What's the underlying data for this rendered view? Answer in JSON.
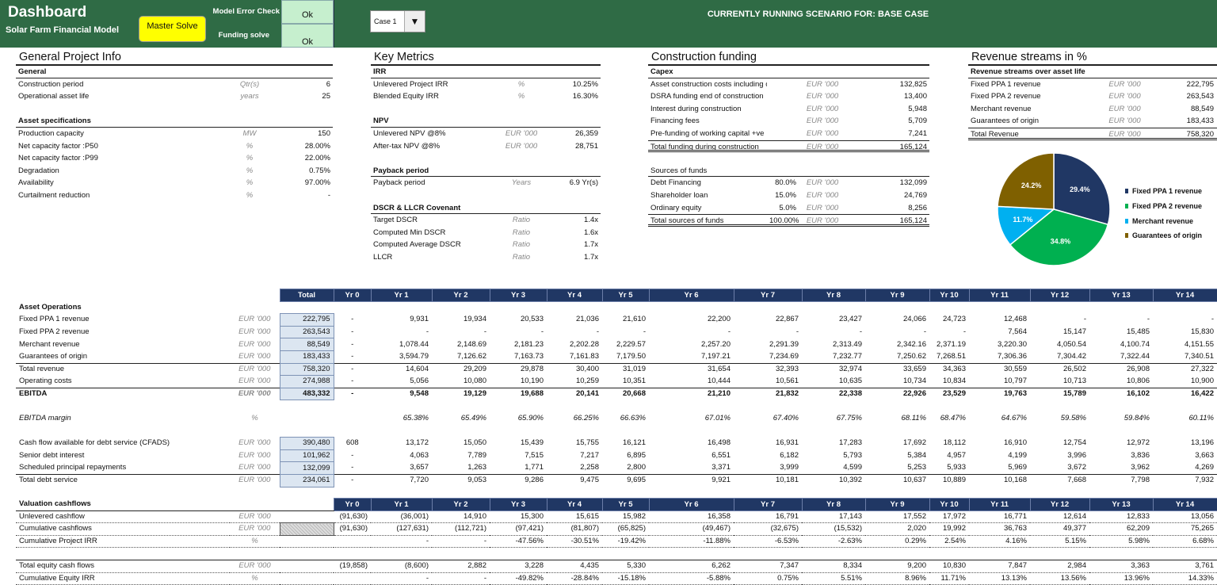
{
  "header": {
    "title": "Dashboard",
    "subtitle": "Solar Farm Financial  Model",
    "master_solve": "Master Solve",
    "model_error_label": "Model Error Check",
    "model_error_value": "Ok",
    "funding_label": "Funding solve",
    "funding_value": "Ok",
    "case_select": "Case 1",
    "scenario": "CURRENTLY RUNNING SCENARIO FOR: BASE CASE",
    "color": "#2f6b45"
  },
  "sections": [
    {
      "id": "s-general",
      "title": "General Project Info",
      "rows": [
        {
          "t": "head",
          "label": "General"
        },
        {
          "label": "Construction period",
          "unit": "Qtr(s)",
          "value": "6"
        },
        {
          "label": "Operational asset life",
          "unit": "years",
          "value": "25"
        },
        {
          "t": "blank"
        },
        {
          "t": "head",
          "label": "Asset specifications"
        },
        {
          "label": "Production capacity",
          "unit": "MW",
          "value": "150"
        },
        {
          "label": "Net capacity factor :P50",
          "unit": "%",
          "value": "28.00%"
        },
        {
          "label": "Net capacity factor :P99",
          "unit": "%",
          "value": "22.00%"
        },
        {
          "label": "Degradation",
          "unit": "%",
          "value": "0.75%"
        },
        {
          "label": "Availability",
          "unit": "%",
          "value": "97.00%"
        },
        {
          "label": "Curtailment reduction",
          "unit": "%",
          "value": "-"
        }
      ]
    },
    {
      "id": "s-metrics",
      "title": "Key Metrics",
      "rows": [
        {
          "t": "head",
          "label": "IRR"
        },
        {
          "label": "Unlevered Project IRR",
          "unit": "%",
          "value": "10.25%"
        },
        {
          "label": "Blended Equity IRR",
          "unit": "%",
          "value": "16.30%"
        },
        {
          "t": "blank"
        },
        {
          "t": "head",
          "label": "NPV"
        },
        {
          "label": "Unlevered NPV @8%",
          "unit": "EUR '000",
          "value": "26,359"
        },
        {
          "label": "After-tax NPV @8%",
          "unit": "EUR '000",
          "value": "28,751"
        },
        {
          "t": "blank"
        },
        {
          "t": "head",
          "label": "Payback period"
        },
        {
          "label": "Payback period",
          "unit": "Years",
          "value": "6.9 Yr(s)"
        },
        {
          "t": "blank"
        },
        {
          "t": "head",
          "label": "DSCR & LLCR Covenant"
        },
        {
          "label": "Target DSCR",
          "unit": "Ratio",
          "value": "1.4x"
        },
        {
          "label": "Computed Min DSCR",
          "unit": "Ratio",
          "value": "1.6x"
        },
        {
          "label": "Computed Average DSCR",
          "unit": "Ratio",
          "value": "1.7x"
        },
        {
          "label": "LLCR",
          "unit": "Ratio",
          "value": "1.7x"
        }
      ]
    },
    {
      "id": "s-funding",
      "title": "Construction funding",
      "rows": [
        {
          "t": "head",
          "label": "Capex"
        },
        {
          "label": "Asset construction costs including contingency",
          "unit": "EUR '000",
          "value": "132,825"
        },
        {
          "label": "DSRA funding end of construction",
          "unit": "EUR '000",
          "value": "13,400"
        },
        {
          "label": "Interest during construction",
          "unit": "EUR '000",
          "value": "5,948"
        },
        {
          "label": "Financing fees",
          "unit": "EUR '000",
          "value": "5,709"
        },
        {
          "label": "Pre-funding of working capital +ve",
          "unit": "EUR '000",
          "value": "7,241"
        },
        {
          "t": "total",
          "label": "Total funding during construction",
          "unit": "EUR '000",
          "value": "165,124"
        },
        {
          "t": "blank"
        },
        {
          "t": "headplain",
          "label": "Sources of funds"
        },
        {
          "label": "Debt Financing",
          "pct": "80.0%",
          "unit": "EUR '000",
          "value": "132,099"
        },
        {
          "label": "Shareholder loan",
          "pct": "15.0%",
          "unit": "EUR '000",
          "value": "24,769"
        },
        {
          "label": "Ordinary equity",
          "pct": "5.0%",
          "unit": "EUR '000",
          "value": "8,256"
        },
        {
          "t": "total",
          "label": "Total sources of funds",
          "pct": "100.00%",
          "unit": "EUR '000",
          "value": "165,124"
        }
      ]
    },
    {
      "id": "s-revenue",
      "title": "Revenue streams in %",
      "rows": [
        {
          "t": "head",
          "label": "Revenue streams over asset life"
        },
        {
          "label": "Fixed  PPA 1 revenue",
          "unit": "EUR '000",
          "value": "222,795"
        },
        {
          "label": "Fixed  PPA 2 revenue",
          "unit": "EUR '000",
          "value": "263,543"
        },
        {
          "label": "Merchant revenue",
          "unit": "EUR '000",
          "value": "88,549"
        },
        {
          "label": "Guarantees of origin",
          "unit": "EUR '000",
          "value": "183,433"
        },
        {
          "t": "total",
          "label": "Total Revenue",
          "unit": "EUR '000",
          "value": "758,320"
        }
      ]
    }
  ],
  "chart_data": {
    "type": "pie",
    "title": "",
    "categories": [
      "Fixed  PPA 1 revenue",
      "Fixed  PPA 2 revenue",
      "Merchant revenue",
      "Guarantees of origin"
    ],
    "values": [
      29.4,
      34.8,
      11.7,
      24.2
    ],
    "labels": [
      "29.4%",
      "34.8%",
      "11.7%",
      "24.2%"
    ],
    "colors": [
      "#203764",
      "#00b050",
      "#00b0f0",
      "#7f6000"
    ],
    "legend": "right"
  },
  "ops": {
    "total_label": "Total",
    "years": [
      "Yr 0",
      "Yr 1",
      "Yr 2",
      "Yr 3",
      "Yr 4",
      "Yr 5",
      "Yr 6",
      "Yr 7",
      "Yr 8",
      "Yr 9",
      "Yr 10",
      "Yr 11",
      "Yr 12",
      "Yr 13",
      "Yr 14"
    ],
    "rows": [
      {
        "t": "section",
        "label": "Asset Operations"
      },
      {
        "label": "Fixed  PPA 1 revenue",
        "unit": "EUR '000",
        "total": "222,795",
        "v": [
          "-",
          "9,931",
          "19,934",
          "20,533",
          "21,036",
          "21,610",
          "22,200",
          "22,867",
          "23,427",
          "24,066",
          "24,723",
          "12,468",
          "-",
          "-",
          "-"
        ]
      },
      {
        "label": "Fixed  PPA 2 revenue",
        "unit": "EUR '000",
        "total": "263,543",
        "v": [
          "-",
          "-",
          "-",
          "-",
          "-",
          "-",
          "-",
          "-",
          "-",
          "-",
          "-",
          "7,564",
          "15,147",
          "15,485",
          "15,830"
        ]
      },
      {
        "label": "Merchant revenue",
        "unit": "EUR '000",
        "total": "88,549",
        "v": [
          "-",
          "1,078.44",
          "2,148.69",
          "2,181.23",
          "2,202.28",
          "2,229.57",
          "2,257.20",
          "2,291.39",
          "2,313.49",
          "2,342.16",
          "2,371.19",
          "3,220.30",
          "4,050.54",
          "4,100.74",
          "4,151.55"
        ]
      },
      {
        "label": "Guarantees of origin",
        "unit": "EUR '000",
        "total": "183,433",
        "v": [
          "-",
          "3,594.79",
          "7,126.62",
          "7,163.73",
          "7,161.83",
          "7,179.50",
          "7,197.21",
          "7,234.69",
          "7,232.77",
          "7,250.62",
          "7,268.51",
          "7,306.36",
          "7,304.42",
          "7,322.44",
          "7,340.51"
        ]
      },
      {
        "t": "topline",
        "label": "Total revenue",
        "unit": "EUR '000",
        "total": "758,320",
        "v": [
          "-",
          "14,604",
          "29,209",
          "29,878",
          "30,400",
          "31,019",
          "31,654",
          "32,393",
          "32,974",
          "33,659",
          "34,363",
          "30,559",
          "26,502",
          "26,908",
          "27,322"
        ]
      },
      {
        "label": "Operating costs",
        "unit": "EUR '000",
        "total": "274,988",
        "v": [
          "-",
          "5,056",
          "10,080",
          "10,190",
          "10,259",
          "10,351",
          "10,444",
          "10,561",
          "10,635",
          "10,734",
          "10,834",
          "10,797",
          "10,713",
          "10,806",
          "10,900"
        ]
      },
      {
        "t": "topline bold",
        "label": "EBITDA",
        "unit": "EUR '000",
        "total": "483,332",
        "v": [
          "-",
          "9,548",
          "19,129",
          "19,688",
          "20,141",
          "20,668",
          "21,210",
          "21,832",
          "22,338",
          "22,926",
          "23,529",
          "19,763",
          "15,789",
          "16,102",
          "16,422"
        ]
      },
      {
        "t": "blank"
      },
      {
        "t": "italic",
        "label": "EBITDA margin",
        "unit": "%",
        "v": [
          "",
          "65.38%",
          "65.49%",
          "65.90%",
          "66.25%",
          "66.63%",
          "67.01%",
          "67.40%",
          "67.75%",
          "68.11%",
          "68.47%",
          "64.67%",
          "59.58%",
          "59.84%",
          "60.11%"
        ]
      },
      {
        "t": "blank"
      },
      {
        "label": "Cash flow available for debt service (CFADS)",
        "unit": "EUR '000",
        "total": "390,480",
        "v": [
          "608",
          "13,172",
          "15,050",
          "15,439",
          "15,755",
          "16,121",
          "16,498",
          "16,931",
          "17,283",
          "17,692",
          "18,112",
          "16,910",
          "12,754",
          "12,972",
          "13,196"
        ]
      },
      {
        "label": "Senior debt interest",
        "unit": "EUR '000",
        "total": "101,962",
        "v": [
          "-",
          "4,063",
          "7,789",
          "7,515",
          "7,217",
          "6,895",
          "6,551",
          "6,182",
          "5,793",
          "5,384",
          "4,957",
          "4,199",
          "3,996",
          "3,836",
          "3,663"
        ]
      },
      {
        "label": "Scheduled principal repayments",
        "unit": "EUR '000",
        "total": "132,099",
        "v": [
          "-",
          "3,657",
          "1,263",
          "1,771",
          "2,258",
          "2,800",
          "3,371",
          "3,999",
          "4,599",
          "5,253",
          "5,933",
          "5,969",
          "3,672",
          "3,962",
          "4,269"
        ]
      },
      {
        "t": "topline",
        "label": "Total debt service",
        "unit": "EUR '000",
        "total": "234,061",
        "v": [
          "-",
          "7,720",
          "9,053",
          "9,286",
          "9,475",
          "9,695",
          "9,921",
          "10,181",
          "10,392",
          "10,637",
          "10,889",
          "10,168",
          "7,668",
          "7,798",
          "7,932"
        ]
      }
    ]
  },
  "valuation": {
    "title": "Valuation cashflows",
    "rows": [
      {
        "t": "dot",
        "label": "Unlevered cashflow",
        "unit": "EUR '000",
        "v": [
          "(91,630)",
          "(36,001)",
          "14,910",
          "15,300",
          "15,615",
          "15,982",
          "16,358",
          "16,791",
          "17,143",
          "17,552",
          "17,972",
          "16,771",
          "12,614",
          "12,833",
          "13,056"
        ]
      },
      {
        "t": "dot hatch",
        "label": "Cumulative cashflows",
        "unit": "EUR '000",
        "v": [
          "(91,630)",
          "(127,631)",
          "(112,721)",
          "(97,421)",
          "(81,807)",
          "(65,825)",
          "(49,467)",
          "(32,675)",
          "(15,532)",
          "2,020",
          "19,992",
          "36,763",
          "49,377",
          "62,209",
          "75,265"
        ]
      },
      {
        "t": "dot",
        "label": "Cumulative Project IRR",
        "unit": "%",
        "v": [
          "",
          "-",
          "-",
          "-47.56%",
          "-30.51%",
          "-19.42%",
          "-11.88%",
          "-6.53%",
          "-2.63%",
          "0.29%",
          "2.54%",
          "4.16%",
          "5.15%",
          "5.98%",
          "6.68%"
        ]
      },
      {
        "t": "blank"
      },
      {
        "t": "topline dot",
        "label": "Total equity cash flows",
        "unit": "EUR '000",
        "v": [
          "(19,858)",
          "(8,600)",
          "2,882",
          "3,228",
          "4,435",
          "5,330",
          "6,262",
          "7,347",
          "8,334",
          "9,200",
          "10,830",
          "7,847",
          "2,984",
          "3,363",
          "3,761"
        ]
      },
      {
        "t": "dot",
        "label": "Cumulative Equity IRR",
        "unit": "%",
        "v": [
          "",
          "-",
          "-",
          "-49.82%",
          "-28.84%",
          "-15.18%",
          "-5.88%",
          "0.75%",
          "5.51%",
          "8.96%",
          "11.71%",
          "13.13%",
          "13.56%",
          "13.96%",
          "14.33%"
        ]
      }
    ]
  }
}
